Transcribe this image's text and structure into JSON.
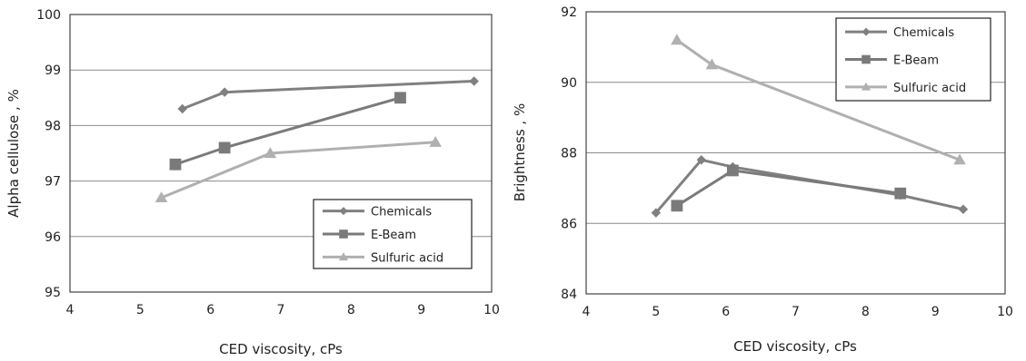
{
  "chart_data": [
    {
      "type": "line",
      "xlabel": "CED viscosity, cPs",
      "ylabel": "Alpha cellulose , %",
      "xlim": [
        4,
        10
      ],
      "ylim": [
        95,
        100
      ],
      "x_ticks": [
        "4",
        "5",
        "6",
        "7",
        "8",
        "9",
        "10"
      ],
      "y_ticks": [
        "95",
        "96",
        "97",
        "98",
        "99",
        "100"
      ],
      "grid": "horizontal",
      "legend": "bottom-right",
      "series": [
        {
          "name": "Chemicals",
          "marker": "diamond",
          "color": "#808080",
          "points": [
            {
              "x": 5.6,
              "y": 98.3
            },
            {
              "x": 6.2,
              "y": 98.6
            },
            {
              "x": 9.75,
              "y": 98.8
            }
          ]
        },
        {
          "name": "E-Beam",
          "marker": "square",
          "color": "#7a7a7a",
          "points": [
            {
              "x": 5.5,
              "y": 97.3
            },
            {
              "x": 6.2,
              "y": 97.6
            },
            {
              "x": 8.7,
              "y": 98.5
            }
          ]
        },
        {
          "name": "Sulfuric acid",
          "marker": "triangle",
          "color": "#b0b0b0",
          "points": [
            {
              "x": 5.3,
              "y": 96.7
            },
            {
              "x": 6.85,
              "y": 97.5
            },
            {
              "x": 9.2,
              "y": 97.7
            }
          ]
        }
      ]
    },
    {
      "type": "line",
      "xlabel": "CED viscosity, cPs",
      "ylabel": "Brightness , %",
      "xlim": [
        4,
        10
      ],
      "ylim": [
        84,
        92
      ],
      "x_ticks": [
        "4",
        "5",
        "6",
        "7",
        "8",
        "9",
        "10"
      ],
      "y_ticks": [
        "84",
        "86",
        "88",
        "90",
        "92"
      ],
      "grid": "horizontal",
      "legend": "top-right",
      "series": [
        {
          "name": "Chemicals",
          "marker": "diamond",
          "color": "#808080",
          "points": [
            {
              "x": 5.0,
              "y": 86.3
            },
            {
              "x": 5.65,
              "y": 87.8
            },
            {
              "x": 6.1,
              "y": 87.6
            },
            {
              "x": 8.5,
              "y": 86.8
            },
            {
              "x": 9.4,
              "y": 86.4
            }
          ]
        },
        {
          "name": "E-Beam",
          "marker": "square",
          "color": "#7a7a7a",
          "points": [
            {
              "x": 5.3,
              "y": 86.5
            },
            {
              "x": 6.1,
              "y": 87.5
            },
            {
              "x": 8.5,
              "y": 86.85
            }
          ]
        },
        {
          "name": "Sulfuric acid",
          "marker": "triangle",
          "color": "#b0b0b0",
          "points": [
            {
              "x": 5.3,
              "y": 91.2
            },
            {
              "x": 5.8,
              "y": 90.5
            },
            {
              "x": 9.35,
              "y": 87.8
            }
          ]
        }
      ]
    }
  ]
}
